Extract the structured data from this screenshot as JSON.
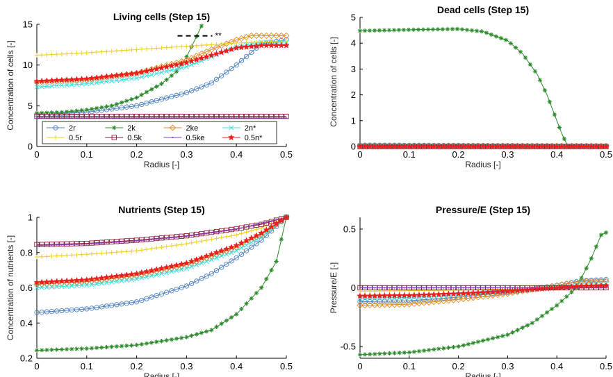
{
  "chart_data": [
    {
      "id": "living",
      "type": "line",
      "title": "Living cells (Step 15)",
      "xlabel": "Radius [-]",
      "ylabel": "Concentration of cells [-]",
      "xlim": [
        0,
        0.5
      ],
      "ylim": [
        0,
        15
      ],
      "xticks": [
        0,
        0.1,
        0.2,
        0.3,
        0.4,
        0.5
      ],
      "yticks": [
        0,
        5,
        10,
        15
      ],
      "xtick_labels": [
        "0",
        "0.1",
        "0.2",
        "0.3",
        "0.4",
        "0.5"
      ],
      "ytick_labels": [
        "0",
        "5",
        "10",
        "15"
      ],
      "grid": false,
      "legend": {
        "placement": "bottom-inside",
        "columns": 4,
        "entries": [
          "2r",
          "2k",
          "2ke",
          "2n*",
          "0.5r",
          "0.5k",
          "0.5ke",
          "0.5n*"
        ]
      },
      "annotations": [
        {
          "text": "**",
          "x": 0.36,
          "y": 13.5
        }
      ],
      "series": [
        {
          "name": "2r",
          "color": "#4a7fc0",
          "marker": "circle",
          "points": [
            [
              0,
              3.9
            ],
            [
              0.1,
              4.2
            ],
            [
              0.2,
              5.0
            ],
            [
              0.3,
              6.6
            ],
            [
              0.35,
              7.8
            ],
            [
              0.4,
              10.0
            ],
            [
              0.45,
              12.6
            ],
            [
              0.5,
              13.1
            ]
          ]
        },
        {
          "name": "2k",
          "color": "#2a8a2a",
          "marker": "asterisk",
          "points": [
            [
              0,
              4.1
            ],
            [
              0.05,
              4.2
            ],
            [
              0.1,
              4.5
            ],
            [
              0.15,
              5.0
            ],
            [
              0.2,
              6.0
            ],
            [
              0.25,
              7.7
            ],
            [
              0.28,
              9.2
            ],
            [
              0.3,
              11.0
            ],
            [
              0.32,
              13.5
            ],
            [
              0.33,
              14.8
            ]
          ]
        },
        {
          "name": "2ke",
          "color": "#e08a20",
          "marker": "diamond",
          "points": [
            [
              0,
              7.9
            ],
            [
              0.1,
              8.2
            ],
            [
              0.2,
              9.0
            ],
            [
              0.3,
              10.6
            ],
            [
              0.35,
              11.9
            ],
            [
              0.4,
              13.1
            ],
            [
              0.43,
              13.6
            ],
            [
              0.5,
              13.6
            ]
          ]
        },
        {
          "name": "2n*",
          "color": "#40dddd",
          "marker": "x",
          "points": [
            [
              0,
              7.3
            ],
            [
              0.1,
              7.7
            ],
            [
              0.2,
              8.4
            ],
            [
              0.3,
              9.8
            ],
            [
              0.35,
              11.0
            ],
            [
              0.4,
              12.2
            ],
            [
              0.45,
              12.8
            ],
            [
              0.5,
              12.8
            ]
          ]
        },
        {
          "name": "0.5r",
          "color": "#f0d020",
          "marker": "plus",
          "points": [
            [
              0,
              11.2
            ],
            [
              0.1,
              11.5
            ],
            [
              0.2,
              11.9
            ],
            [
              0.3,
              12.3
            ],
            [
              0.4,
              12.7
            ],
            [
              0.5,
              12.9
            ]
          ]
        },
        {
          "name": "0.5k",
          "color": "#8a1a3a",
          "marker": "square",
          "points": [
            [
              0,
              3.7
            ],
            [
              0.5,
              3.7
            ]
          ]
        },
        {
          "name": "0.5ke",
          "color": "#8a40c0",
          "marker": "dot",
          "points": [
            [
              0,
              3.5
            ],
            [
              0.5,
              3.5
            ]
          ]
        },
        {
          "name": "0.5n*",
          "color": "#e82020",
          "marker": "star",
          "points": [
            [
              0,
              8.0
            ],
            [
              0.1,
              8.3
            ],
            [
              0.2,
              9.0
            ],
            [
              0.3,
              10.3
            ],
            [
              0.35,
              11.2
            ],
            [
              0.4,
              12.1
            ],
            [
              0.45,
              12.4
            ],
            [
              0.5,
              12.4
            ]
          ]
        }
      ]
    },
    {
      "id": "dead",
      "type": "line",
      "title": "Dead cells (Step 15)",
      "xlabel": "Radius [-]",
      "ylabel": "Concentration of cells [-]",
      "xlim": [
        0,
        0.5
      ],
      "ylim": [
        0,
        5
      ],
      "xticks": [
        0,
        0.1,
        0.2,
        0.3,
        0.4,
        0.5
      ],
      "yticks": [
        0,
        1,
        2,
        3,
        4,
        5
      ],
      "xtick_labels": [
        "0",
        "0.1",
        "0.2",
        "0.3",
        "0.4",
        "0.5"
      ],
      "ytick_labels": [
        "0",
        "1",
        "2",
        "3",
        "4",
        "5"
      ],
      "grid": false,
      "series": [
        {
          "name": "2r",
          "color": "#4a7fc0",
          "marker": "circle",
          "points": [
            [
              0,
              0.05
            ],
            [
              0.5,
              0.02
            ]
          ]
        },
        {
          "name": "2k",
          "color": "#2a8a2a",
          "marker": "asterisk",
          "points": [
            [
              0,
              4.48
            ],
            [
              0.1,
              4.52
            ],
            [
              0.2,
              4.55
            ],
            [
              0.25,
              4.45
            ],
            [
              0.3,
              4.1
            ],
            [
              0.33,
              3.6
            ],
            [
              0.36,
              2.8
            ],
            [
              0.38,
              2.0
            ],
            [
              0.4,
              1.0
            ],
            [
              0.41,
              0.5
            ],
            [
              0.42,
              0.1
            ],
            [
              0.425,
              0.0
            ]
          ]
        },
        {
          "name": "2ke",
          "color": "#e08a20",
          "marker": "diamond",
          "points": [
            [
              0,
              0.02
            ],
            [
              0.5,
              0.02
            ]
          ]
        },
        {
          "name": "2n*",
          "color": "#40dddd",
          "marker": "x",
          "points": [
            [
              0,
              0.03
            ],
            [
              0.5,
              0.02
            ]
          ]
        },
        {
          "name": "0.5r",
          "color": "#f0d020",
          "marker": "plus",
          "points": [
            [
              0,
              0.01
            ],
            [
              0.5,
              0.01
            ]
          ]
        },
        {
          "name": "0.5k",
          "color": "#8a1a3a",
          "marker": "square",
          "points": [
            [
              0,
              0.0
            ],
            [
              0.5,
              0.0
            ]
          ]
        },
        {
          "name": "0.5ke",
          "color": "#8a40c0",
          "marker": "dot",
          "points": [
            [
              0,
              0.0
            ],
            [
              0.5,
              0.0
            ]
          ]
        },
        {
          "name": "0.5n*",
          "color": "#e82020",
          "marker": "star",
          "points": [
            [
              0,
              0.0
            ],
            [
              0.5,
              0.0
            ]
          ]
        }
      ]
    },
    {
      "id": "nutrients",
      "type": "line",
      "title": "Nutrients (Step 15)",
      "xlabel": "Radius [-]",
      "ylabel": "Concentration of nutrients [-]",
      "xlim": [
        0,
        0.5
      ],
      "ylim": [
        0.2,
        1.0
      ],
      "xticks": [
        0,
        0.1,
        0.2,
        0.3,
        0.4,
        0.5
      ],
      "yticks": [
        0.2,
        0.4,
        0.6,
        0.8,
        1.0
      ],
      "xtick_labels": [
        "0",
        "0.1",
        "0.2",
        "0.3",
        "0.4",
        "0.5"
      ],
      "ytick_labels": [
        "0.2",
        "0.4",
        "0.6",
        "0.8",
        "1"
      ],
      "grid": false,
      "series": [
        {
          "name": "2r",
          "color": "#4a7fc0",
          "marker": "circle",
          "points": [
            [
              0,
              0.46
            ],
            [
              0.1,
              0.48
            ],
            [
              0.2,
              0.52
            ],
            [
              0.3,
              0.61
            ],
            [
              0.35,
              0.68
            ],
            [
              0.4,
              0.77
            ],
            [
              0.45,
              0.87
            ],
            [
              0.5,
              1.0
            ]
          ]
        },
        {
          "name": "2k",
          "color": "#2a8a2a",
          "marker": "asterisk",
          "points": [
            [
              0,
              0.245
            ],
            [
              0.1,
              0.255
            ],
            [
              0.2,
              0.275
            ],
            [
              0.3,
              0.32
            ],
            [
              0.35,
              0.36
            ],
            [
              0.4,
              0.45
            ],
            [
              0.45,
              0.6
            ],
            [
              0.48,
              0.75
            ],
            [
              0.5,
              1.0
            ]
          ]
        },
        {
          "name": "2ke",
          "color": "#e08a20",
          "marker": "diamond",
          "points": [
            [
              0,
              0.62
            ],
            [
              0.1,
              0.635
            ],
            [
              0.2,
              0.67
            ],
            [
              0.3,
              0.73
            ],
            [
              0.4,
              0.83
            ],
            [
              0.45,
              0.9
            ],
            [
              0.5,
              1.0
            ]
          ]
        },
        {
          "name": "2n*",
          "color": "#40dddd",
          "marker": "x",
          "points": [
            [
              0,
              0.6
            ],
            [
              0.1,
              0.615
            ],
            [
              0.2,
              0.65
            ],
            [
              0.3,
              0.71
            ],
            [
              0.4,
              0.81
            ],
            [
              0.45,
              0.89
            ],
            [
              0.5,
              1.0
            ]
          ]
        },
        {
          "name": "0.5r",
          "color": "#f0d020",
          "marker": "plus",
          "points": [
            [
              0,
              0.775
            ],
            [
              0.1,
              0.79
            ],
            [
              0.2,
              0.81
            ],
            [
              0.3,
              0.85
            ],
            [
              0.4,
              0.9
            ],
            [
              0.45,
              0.94
            ],
            [
              0.5,
              1.0
            ]
          ]
        },
        {
          "name": "0.5k",
          "color": "#8a1a3a",
          "marker": "square",
          "points": [
            [
              0,
              0.845
            ],
            [
              0.1,
              0.852
            ],
            [
              0.2,
              0.87
            ],
            [
              0.3,
              0.895
            ],
            [
              0.4,
              0.935
            ],
            [
              0.45,
              0.96
            ],
            [
              0.5,
              1.0
            ]
          ]
        },
        {
          "name": "0.5ke",
          "color": "#8a40c0",
          "marker": "dot",
          "points": [
            [
              0,
              0.84
            ],
            [
              0.1,
              0.848
            ],
            [
              0.2,
              0.866
            ],
            [
              0.3,
              0.892
            ],
            [
              0.4,
              0.932
            ],
            [
              0.5,
              1.0
            ]
          ]
        },
        {
          "name": "0.5n*",
          "color": "#e82020",
          "marker": "star",
          "points": [
            [
              0,
              0.63
            ],
            [
              0.1,
              0.645
            ],
            [
              0.2,
              0.68
            ],
            [
              0.3,
              0.74
            ],
            [
              0.4,
              0.84
            ],
            [
              0.45,
              0.91
            ],
            [
              0.5,
              1.0
            ]
          ]
        }
      ]
    },
    {
      "id": "pressure",
      "type": "line",
      "title": "Pressure/E (Step 15)",
      "xlabel": "Radius [-]",
      "ylabel": "Pressure/E [-]",
      "xlim": [
        0,
        0.5
      ],
      "ylim": [
        -0.6,
        0.6
      ],
      "xticks": [
        0,
        0.1,
        0.2,
        0.3,
        0.4,
        0.5
      ],
      "yticks": [
        -0.5,
        0,
        0.5
      ],
      "xtick_labels": [
        "0",
        "0.1",
        "0.2",
        "0.3",
        "0.4",
        "0.5"
      ],
      "ytick_labels": [
        "-0.5",
        "0",
        "0.5"
      ],
      "grid": false,
      "series": [
        {
          "name": "2r",
          "color": "#4a7fc0",
          "marker": "circle",
          "points": [
            [
              0,
              -0.12
            ],
            [
              0.1,
              -0.11
            ],
            [
              0.2,
              -0.08
            ],
            [
              0.3,
              -0.04
            ],
            [
              0.4,
              0.02
            ],
            [
              0.45,
              0.06
            ],
            [
              0.5,
              0.07
            ]
          ]
        },
        {
          "name": "2k",
          "color": "#2a8a2a",
          "marker": "asterisk",
          "points": [
            [
              0,
              -0.57
            ],
            [
              0.1,
              -0.55
            ],
            [
              0.2,
              -0.5
            ],
            [
              0.3,
              -0.4
            ],
            [
              0.35,
              -0.3
            ],
            [
              0.4,
              -0.15
            ],
            [
              0.44,
              0.0
            ],
            [
              0.47,
              0.25
            ],
            [
              0.49,
              0.45
            ],
            [
              0.5,
              0.47
            ]
          ]
        },
        {
          "name": "2ke",
          "color": "#e08a20",
          "marker": "diamond",
          "points": [
            [
              0,
              -0.15
            ],
            [
              0.1,
              -0.14
            ],
            [
              0.2,
              -0.1
            ],
            [
              0.3,
              -0.05
            ],
            [
              0.4,
              0.02
            ],
            [
              0.45,
              0.055
            ],
            [
              0.5,
              0.055
            ]
          ]
        },
        {
          "name": "2n*",
          "color": "#40dddd",
          "marker": "x",
          "points": [
            [
              0,
              -0.09
            ],
            [
              0.1,
              -0.08
            ],
            [
              0.2,
              -0.06
            ],
            [
              0.3,
              -0.03
            ],
            [
              0.4,
              0.01
            ],
            [
              0.5,
              0.03
            ]
          ]
        },
        {
          "name": "0.5r",
          "color": "#f0d020",
          "marker": "plus",
          "points": [
            [
              0,
              -0.03
            ],
            [
              0.2,
              -0.02
            ],
            [
              0.4,
              0.0
            ],
            [
              0.5,
              0.01
            ]
          ]
        },
        {
          "name": "0.5k",
          "color": "#8a1a3a",
          "marker": "square",
          "points": [
            [
              0,
              0.0
            ],
            [
              0.5,
              0.0
            ]
          ]
        },
        {
          "name": "0.5ke",
          "color": "#8a40c0",
          "marker": "dot",
          "points": [
            [
              0,
              0.0
            ],
            [
              0.5,
              0.0
            ]
          ]
        },
        {
          "name": "0.5n*",
          "color": "#e82020",
          "marker": "star",
          "points": [
            [
              0,
              -0.07
            ],
            [
              0.1,
              -0.065
            ],
            [
              0.2,
              -0.05
            ],
            [
              0.3,
              -0.03
            ],
            [
              0.4,
              0.0
            ],
            [
              0.45,
              0.015
            ],
            [
              0.5,
              0.02
            ]
          ]
        }
      ]
    }
  ]
}
